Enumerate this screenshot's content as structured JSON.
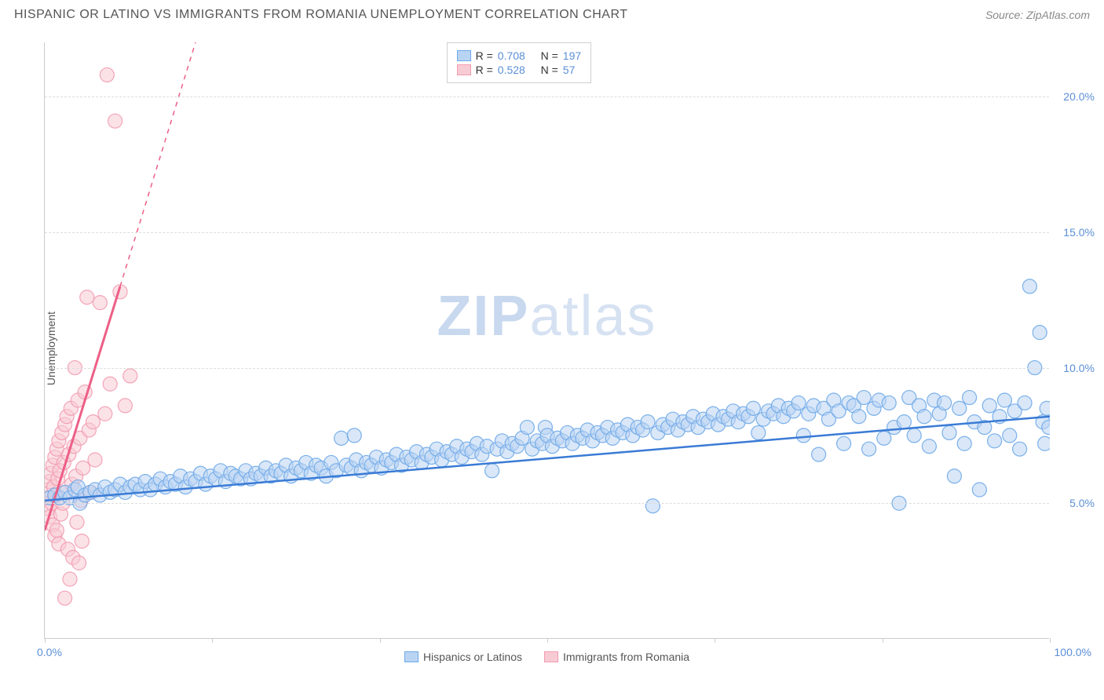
{
  "title": "HISPANIC OR LATINO VS IMMIGRANTS FROM ROMANIA UNEMPLOYMENT CORRELATION CHART",
  "source_label": "Source: ZipAtlas.com",
  "ylabel": "Unemployment",
  "watermark_a": "ZIP",
  "watermark_b": "atlas",
  "xlim": [
    0,
    100
  ],
  "ylim": [
    0,
    22
  ],
  "x_ticks_marks": [
    0,
    16.67,
    33.33,
    50,
    66.67,
    83.33,
    100
  ],
  "x_label_min": "0.0%",
  "x_label_max": "100.0%",
  "y_gridlines": [
    5,
    10,
    15,
    20
  ],
  "y_tick_labels": [
    "5.0%",
    "10.0%",
    "15.0%",
    "20.0%"
  ],
  "series_blue": {
    "name": "Hispanics or Latinos",
    "R": "0.708",
    "N": "197",
    "fill": "#b9d4f3",
    "stroke": "#6ea8e8",
    "line_color": "#3a7bd5",
    "marker_radius": 9,
    "marker_opacity": 0.55,
    "trend": {
      "x1": 0,
      "y1": 5.1,
      "x2": 100,
      "y2": 8.2
    }
  },
  "series_pink": {
    "name": "Immigrants from Romania",
    "R": "0.528",
    "N": "57",
    "fill": "#f7cbd4",
    "stroke": "#f29bb0",
    "line_color": "#ed5f86",
    "marker_radius": 9,
    "marker_opacity": 0.55,
    "trend_solid": {
      "x1": 0,
      "y1": 4.0,
      "x2": 7.5,
      "y2": 13.0
    },
    "trend_dash": {
      "x1": 7.5,
      "y1": 13.0,
      "x2": 15,
      "y2": 22.0
    }
  },
  "legend_labels": {
    "R": "R =",
    "N": "N ="
  },
  "data_blue": [
    [
      0.5,
      5.2
    ],
    [
      1,
      5.3
    ],
    [
      1.5,
      5.2
    ],
    [
      2,
      5.4
    ],
    [
      2.5,
      5.2
    ],
    [
      3,
      5.5
    ],
    [
      3.3,
      5.6
    ],
    [
      3.5,
      5.0
    ],
    [
      4,
      5.3
    ],
    [
      4.5,
      5.4
    ],
    [
      5,
      5.5
    ],
    [
      5.5,
      5.3
    ],
    [
      6,
      5.6
    ],
    [
      6.5,
      5.4
    ],
    [
      7,
      5.5
    ],
    [
      7.5,
      5.7
    ],
    [
      8,
      5.4
    ],
    [
      8.5,
      5.6
    ],
    [
      9,
      5.7
    ],
    [
      9.5,
      5.5
    ],
    [
      10,
      5.8
    ],
    [
      10.5,
      5.5
    ],
    [
      11,
      5.7
    ],
    [
      11.5,
      5.9
    ],
    [
      12,
      5.6
    ],
    [
      12.5,
      5.8
    ],
    [
      13,
      5.7
    ],
    [
      13.5,
      6.0
    ],
    [
      14,
      5.6
    ],
    [
      14.5,
      5.9
    ],
    [
      15,
      5.8
    ],
    [
      15.5,
      6.1
    ],
    [
      16,
      5.7
    ],
    [
      16.5,
      6.0
    ],
    [
      17,
      5.9
    ],
    [
      17.5,
      6.2
    ],
    [
      18,
      5.8
    ],
    [
      18.5,
      6.1
    ],
    [
      19,
      6.0
    ],
    [
      19.5,
      5.9
    ],
    [
      20,
      6.2
    ],
    [
      20.5,
      5.9
    ],
    [
      21,
      6.1
    ],
    [
      21.5,
      6.0
    ],
    [
      22,
      6.3
    ],
    [
      22.5,
      6.0
    ],
    [
      23,
      6.2
    ],
    [
      23.5,
      6.1
    ],
    [
      24,
      6.4
    ],
    [
      24.5,
      6.0
    ],
    [
      25,
      6.3
    ],
    [
      25.5,
      6.2
    ],
    [
      26,
      6.5
    ],
    [
      26.5,
      6.1
    ],
    [
      27,
      6.4
    ],
    [
      27.5,
      6.3
    ],
    [
      28,
      6.0
    ],
    [
      28.5,
      6.5
    ],
    [
      29,
      6.2
    ],
    [
      29.5,
      7.4
    ],
    [
      30,
      6.4
    ],
    [
      30.5,
      6.3
    ],
    [
      30.8,
      7.5
    ],
    [
      31,
      6.6
    ],
    [
      31.5,
      6.2
    ],
    [
      32,
      6.5
    ],
    [
      32.5,
      6.4
    ],
    [
      33,
      6.7
    ],
    [
      33.5,
      6.3
    ],
    [
      34,
      6.6
    ],
    [
      34.5,
      6.5
    ],
    [
      35,
      6.8
    ],
    [
      35.5,
      6.4
    ],
    [
      36,
      6.7
    ],
    [
      36.5,
      6.6
    ],
    [
      37,
      6.9
    ],
    [
      37.5,
      6.5
    ],
    [
      38,
      6.8
    ],
    [
      38.5,
      6.7
    ],
    [
      39,
      7.0
    ],
    [
      39.5,
      6.6
    ],
    [
      40,
      6.9
    ],
    [
      40.5,
      6.8
    ],
    [
      41,
      7.1
    ],
    [
      41.5,
      6.7
    ],
    [
      42,
      7.0
    ],
    [
      42.5,
      6.9
    ],
    [
      43,
      7.2
    ],
    [
      43.5,
      6.8
    ],
    [
      44,
      7.1
    ],
    [
      44.5,
      6.2
    ],
    [
      45,
      7.0
    ],
    [
      45.5,
      7.3
    ],
    [
      46,
      6.9
    ],
    [
      46.5,
      7.2
    ],
    [
      47,
      7.1
    ],
    [
      47.5,
      7.4
    ],
    [
      48,
      7.8
    ],
    [
      48.5,
      7.0
    ],
    [
      49,
      7.3
    ],
    [
      49.5,
      7.2
    ],
    [
      49.8,
      7.8
    ],
    [
      50,
      7.5
    ],
    [
      50.5,
      7.1
    ],
    [
      51,
      7.4
    ],
    [
      51.5,
      7.3
    ],
    [
      52,
      7.6
    ],
    [
      52.5,
      7.2
    ],
    [
      53,
      7.5
    ],
    [
      53.5,
      7.4
    ],
    [
      54,
      7.7
    ],
    [
      54.5,
      7.3
    ],
    [
      55,
      7.6
    ],
    [
      55.5,
      7.5
    ],
    [
      56,
      7.8
    ],
    [
      56.5,
      7.4
    ],
    [
      57,
      7.7
    ],
    [
      57.5,
      7.6
    ],
    [
      58,
      7.9
    ],
    [
      58.5,
      7.5
    ],
    [
      59,
      7.8
    ],
    [
      59.5,
      7.7
    ],
    [
      60,
      8.0
    ],
    [
      60.5,
      4.9
    ],
    [
      61,
      7.6
    ],
    [
      61.5,
      7.9
    ],
    [
      62,
      7.8
    ],
    [
      62.5,
      8.1
    ],
    [
      63,
      7.7
    ],
    [
      63.5,
      8.0
    ],
    [
      64,
      7.9
    ],
    [
      64.5,
      8.2
    ],
    [
      65,
      7.8
    ],
    [
      65.5,
      8.1
    ],
    [
      66,
      8.0
    ],
    [
      66.5,
      8.3
    ],
    [
      67,
      7.9
    ],
    [
      67.5,
      8.2
    ],
    [
      68,
      8.1
    ],
    [
      68.5,
      8.4
    ],
    [
      69,
      8.0
    ],
    [
      69.5,
      8.3
    ],
    [
      70,
      8.2
    ],
    [
      70.5,
      8.5
    ],
    [
      71,
      7.6
    ],
    [
      71.5,
      8.1
    ],
    [
      72,
      8.4
    ],
    [
      72.5,
      8.3
    ],
    [
      73,
      8.6
    ],
    [
      73.5,
      8.2
    ],
    [
      74,
      8.5
    ],
    [
      74.5,
      8.4
    ],
    [
      75,
      8.7
    ],
    [
      75.5,
      7.5
    ],
    [
      76,
      8.3
    ],
    [
      76.5,
      8.6
    ],
    [
      77,
      6.8
    ],
    [
      77.5,
      8.5
    ],
    [
      78,
      8.1
    ],
    [
      78.5,
      8.8
    ],
    [
      79,
      8.4
    ],
    [
      79.5,
      7.2
    ],
    [
      80,
      8.7
    ],
    [
      80.5,
      8.6
    ],
    [
      81,
      8.2
    ],
    [
      81.5,
      8.9
    ],
    [
      82,
      7.0
    ],
    [
      82.5,
      8.5
    ],
    [
      83,
      8.8
    ],
    [
      83.5,
      7.4
    ],
    [
      84,
      8.7
    ],
    [
      84.5,
      7.8
    ],
    [
      85,
      5.0
    ],
    [
      85.5,
      8.0
    ],
    [
      86,
      8.9
    ],
    [
      86.5,
      7.5
    ],
    [
      87,
      8.6
    ],
    [
      87.5,
      8.2
    ],
    [
      88,
      7.1
    ],
    [
      88.5,
      8.8
    ],
    [
      89,
      8.3
    ],
    [
      89.5,
      8.7
    ],
    [
      90,
      7.6
    ],
    [
      90.5,
      6.0
    ],
    [
      91,
      8.5
    ],
    [
      91.5,
      7.2
    ],
    [
      92,
      8.9
    ],
    [
      92.5,
      8.0
    ],
    [
      93,
      5.5
    ],
    [
      93.5,
      7.8
    ],
    [
      94,
      8.6
    ],
    [
      94.5,
      7.3
    ],
    [
      95,
      8.2
    ],
    [
      95.5,
      8.8
    ],
    [
      96,
      7.5
    ],
    [
      96.5,
      8.4
    ],
    [
      97,
      7.0
    ],
    [
      97.5,
      8.7
    ],
    [
      98,
      13.0
    ],
    [
      98.5,
      10.0
    ],
    [
      99,
      11.3
    ],
    [
      99.3,
      8.0
    ],
    [
      99.5,
      7.2
    ],
    [
      99.7,
      8.5
    ],
    [
      99.9,
      7.8
    ]
  ],
  "data_pink": [
    [
      0.2,
      5.2
    ],
    [
      0.3,
      5.5
    ],
    [
      0.4,
      4.8
    ],
    [
      0.5,
      5.8
    ],
    [
      0.5,
      4.5
    ],
    [
      0.6,
      6.1
    ],
    [
      0.7,
      5.0
    ],
    [
      0.8,
      6.4
    ],
    [
      0.8,
      4.2
    ],
    [
      0.9,
      5.6
    ],
    [
      1.0,
      6.7
    ],
    [
      1.0,
      3.8
    ],
    [
      1.1,
      5.3
    ],
    [
      1.2,
      7.0
    ],
    [
      1.2,
      4.0
    ],
    [
      1.3,
      5.9
    ],
    [
      1.4,
      7.3
    ],
    [
      1.4,
      3.5
    ],
    [
      1.5,
      6.2
    ],
    [
      1.6,
      4.6
    ],
    [
      1.7,
      7.6
    ],
    [
      1.8,
      5.0
    ],
    [
      1.9,
      6.5
    ],
    [
      2.0,
      1.5
    ],
    [
      2.0,
      7.9
    ],
    [
      2.1,
      5.4
    ],
    [
      2.2,
      8.2
    ],
    [
      2.3,
      3.3
    ],
    [
      2.4,
      6.8
    ],
    [
      2.5,
      2.2
    ],
    [
      2.6,
      8.5
    ],
    [
      2.7,
      5.7
    ],
    [
      2.8,
      3.0
    ],
    [
      2.9,
      7.1
    ],
    [
      3.0,
      10.0
    ],
    [
      3.1,
      6.0
    ],
    [
      3.2,
      4.3
    ],
    [
      3.3,
      8.8
    ],
    [
      3.4,
      2.8
    ],
    [
      3.5,
      7.4
    ],
    [
      3.6,
      5.1
    ],
    [
      3.7,
      3.6
    ],
    [
      3.8,
      6.3
    ],
    [
      4.0,
      9.1
    ],
    [
      4.2,
      12.6
    ],
    [
      4.4,
      7.7
    ],
    [
      4.6,
      5.4
    ],
    [
      4.8,
      8.0
    ],
    [
      5.0,
      6.6
    ],
    [
      5.5,
      12.4
    ],
    [
      6.0,
      8.3
    ],
    [
      6.2,
      20.8
    ],
    [
      6.5,
      9.4
    ],
    [
      7.0,
      19.1
    ],
    [
      7.5,
      12.8
    ],
    [
      8.0,
      8.6
    ],
    [
      8.5,
      9.7
    ]
  ]
}
